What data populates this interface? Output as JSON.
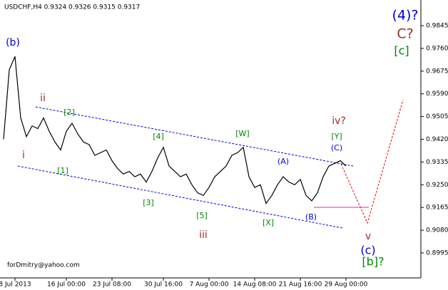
{
  "chart_data": {
    "type": "line",
    "title": "USDCHF,H4  0.9324 0.9326 0.9315 0.9317",
    "watermark": "forDmitry@yahoo.com",
    "categories": [
      null,
      null,
      "8 Jul 2013",
      null,
      null,
      null,
      null,
      null,
      null,
      null,
      null,
      "16 Jul 00:00",
      null,
      null,
      null,
      null,
      null,
      null,
      null,
      "23 Jul 08:00",
      null,
      null,
      null,
      null,
      null,
      null,
      null,
      null,
      "30 Jul 16:00",
      null,
      null,
      null,
      null,
      null,
      null,
      null,
      "7 Aug 00:00",
      null,
      null,
      null,
      null,
      null,
      null,
      null,
      "14 Aug 08:00",
      null,
      null,
      null,
      null,
      null,
      null,
      null,
      "21 Aug 16:00",
      null,
      null,
      null,
      null,
      null,
      null,
      null,
      "29 Aug 00:00"
    ],
    "values": [
      0.942,
      0.968,
      0.973,
      0.95,
      0.943,
      0.947,
      0.946,
      0.95,
      0.945,
      0.941,
      0.938,
      0.945,
      0.948,
      0.944,
      0.941,
      0.94,
      0.936,
      0.937,
      0.938,
      0.934,
      0.931,
      0.929,
      0.93,
      0.928,
      0.929,
      0.926,
      0.93,
      0.935,
      0.939,
      0.932,
      0.93,
      0.928,
      0.929,
      0.925,
      0.922,
      0.921,
      0.924,
      0.928,
      0.93,
      0.932,
      0.936,
      0.937,
      0.939,
      0.928,
      0.924,
      0.925,
      0.918,
      0.921,
      0.925,
      0.928,
      0.926,
      0.925,
      0.927,
      0.921,
      0.919,
      0.922,
      0.928,
      0.932,
      0.933,
      0.934,
      0.932
    ],
    "color": "#000000",
    "ylim": [
      0.8907,
      0.9941
    ],
    "yticks": [
      {
        "value": 0.8995,
        "label": "0.8995"
      },
      {
        "value": 0.908,
        "label": "0.9080"
      },
      {
        "value": 0.9165,
        "label": "0.9165"
      },
      {
        "value": 0.925,
        "label": "0.9250"
      },
      {
        "value": 0.9335,
        "label": "0.9335"
      },
      {
        "value": 0.942,
        "label": "0.9420"
      },
      {
        "value": 0.9505,
        "label": "0.9505"
      },
      {
        "value": 0.959,
        "label": "0.9590"
      },
      {
        "value": 0.9675,
        "label": "0.9675"
      },
      {
        "value": 0.976,
        "label": "0.9760"
      },
      {
        "value": 0.9845,
        "label": "0.9845"
      }
    ],
    "grid": false,
    "annotations": [
      "(4)?",
      "C?",
      "[c]",
      "(b)",
      "ii",
      "i",
      "[2]",
      "[1]",
      "[4]",
      "[3]",
      "[5]",
      "iii",
      "[W]",
      "(A)",
      "[X]",
      "(B)",
      "iv?",
      "[Y]",
      "(C)",
      "v",
      "(c)",
      "[b]?"
    ]
  }
}
